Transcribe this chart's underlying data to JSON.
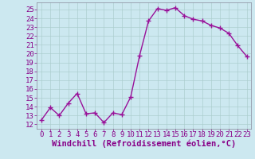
{
  "x": [
    0,
    1,
    2,
    3,
    4,
    5,
    6,
    7,
    8,
    9,
    10,
    11,
    12,
    13,
    14,
    15,
    16,
    17,
    18,
    19,
    20,
    21,
    22,
    23
  ],
  "y": [
    12.5,
    13.9,
    13.0,
    14.4,
    15.5,
    13.2,
    13.3,
    12.2,
    13.3,
    13.1,
    15.1,
    19.8,
    23.7,
    25.1,
    24.9,
    25.2,
    24.3,
    23.9,
    23.7,
    23.2,
    22.9,
    22.3,
    20.9,
    19.7
  ],
  "line_color": "#991199",
  "marker_color": "#991199",
  "bg_color": "#cce8f0",
  "grid_color": "#aacccc",
  "xlabel": "Windchill (Refroidissement éolien,°C)",
  "ylim": [
    11.5,
    25.8
  ],
  "xlim": [
    -0.5,
    23.5
  ],
  "yticks": [
    12,
    13,
    14,
    15,
    16,
    17,
    18,
    19,
    20,
    21,
    22,
    23,
    24,
    25
  ],
  "xticks": [
    0,
    1,
    2,
    3,
    4,
    5,
    6,
    7,
    8,
    9,
    10,
    11,
    12,
    13,
    14,
    15,
    16,
    17,
    18,
    19,
    20,
    21,
    22,
    23
  ],
  "xlabel_fontsize": 7.5,
  "tick_fontsize": 6.5,
  "line_width": 1.0,
  "marker_size": 2.5,
  "text_color": "#880088"
}
